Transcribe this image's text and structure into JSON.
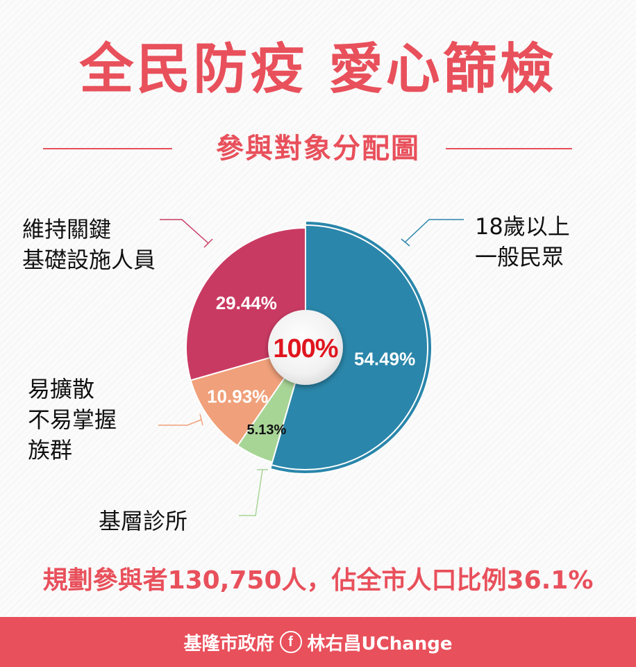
{
  "header": {
    "title": "全民防疫 愛心篩檢",
    "subtitle": "參與對象分配圖"
  },
  "summary": "規劃參與者130,750人，佔全市人口比例36.1%",
  "footer": {
    "org": "基隆市政府",
    "icon": "facebook-icon",
    "icon_glyph": "f",
    "account": "林右昌UChange"
  },
  "colors": {
    "brand": "#e8505b",
    "general": "#2a86aa",
    "infra": "#c93a62",
    "vulnerable": "#f0a07a",
    "clinic": "#a7d596",
    "center_text": "#e0151f"
  },
  "chart_data": {
    "type": "pie",
    "title": "參與對象分配圖",
    "center_label": "100%",
    "slices": [
      {
        "label": "18歲以上\n一般民眾",
        "value": 54.49,
        "value_label": "54.49%",
        "color": "#2a86aa"
      },
      {
        "label": "基層診所",
        "value": 5.13,
        "value_label": "5.13%",
        "color": "#a7d596"
      },
      {
        "label": "易擴散\n不易掌握\n族群",
        "value": 10.93,
        "value_label": "10.93%",
        "color": "#f0a07a"
      },
      {
        "label": "維持關鍵\n基礎設施人員",
        "value": 29.44,
        "value_label": "29.44%",
        "color": "#c93a62"
      }
    ]
  }
}
